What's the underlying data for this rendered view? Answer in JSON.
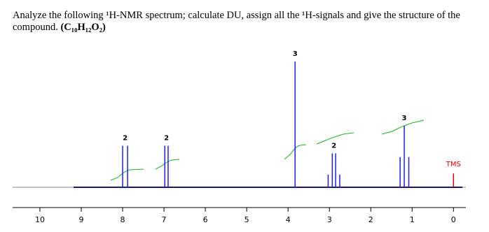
{
  "question": "Analyze the following ¹H-NMR spectrum; calculate DU, assign all the ¹H-signals and give the   structure of the compound.",
  "formula": "(C₁₀H₁₂O₂)",
  "chart_data": {
    "type": "spectrum",
    "xlim": [
      10.66,
      -0.3
    ],
    "xticks": [
      10,
      9,
      8,
      7,
      6,
      5,
      4,
      3,
      2,
      1,
      0
    ],
    "ylim": [
      0,
      100
    ],
    "peaks": {
      "color": "#1f1fe0",
      "x": [
        8.0,
        7.88,
        6.98,
        6.9,
        3.83,
        3.03,
        2.93,
        2.85,
        2.75,
        1.29,
        1.19,
        1.08
      ],
      "values": [
        33,
        33,
        33,
        33,
        100,
        10,
        27,
        27,
        10,
        24,
        49,
        24
      ]
    },
    "reference": {
      "label": "TMS",
      "x": 0,
      "value": 11,
      "color": "#e00000"
    },
    "integrals": [
      {
        "label": "2",
        "x": 7.94
      },
      {
        "label": "2",
        "x": 6.94
      },
      {
        "label": "3",
        "x": 3.83
      },
      {
        "label": "2",
        "x": 2.89
      },
      {
        "label": "3",
        "x": 1.19
      }
    ]
  }
}
